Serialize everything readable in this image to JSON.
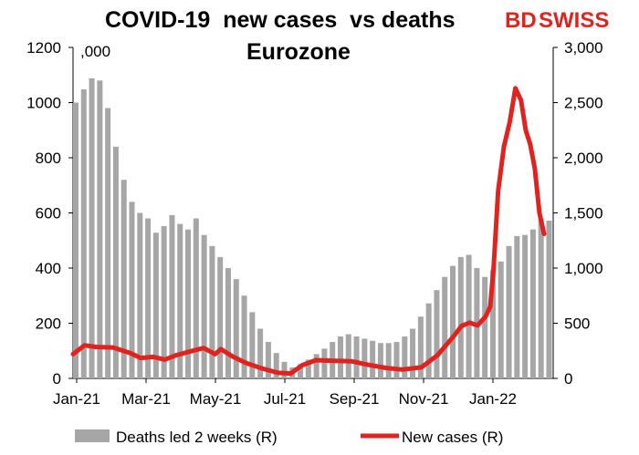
{
  "title_line1": "COVID-19  new cases  vs deaths",
  "title_line2": "Eurozone",
  "brand": {
    "bd": "BD",
    "swiss": "SWISS",
    "color": "#e1231f"
  },
  "unit_label": ",000",
  "colors": {
    "bars": "#a6a6a6",
    "line": "#e1231f"
  },
  "chart_data": {
    "type": "bar+line",
    "x_ticks": [
      "Jan-21",
      "Mar-21",
      "May-21",
      "Jul-21",
      "Sep-21",
      "Nov-21",
      "Jan-22"
    ],
    "left_axis": {
      "ticks": [
        "0",
        "200",
        "400",
        "600",
        "800",
        "1000",
        "1200"
      ],
      "range": [
        0,
        1200
      ]
    },
    "right_axis": {
      "ticks": [
        "0",
        "500",
        "1,000",
        "1,500",
        "2,000",
        "2,500",
        "3,000"
      ],
      "range": [
        0,
        3000
      ]
    },
    "legend": {
      "bars": "Deaths led 2 weeks (R)",
      "line": "New cases (R)",
      "position": "bottom"
    },
    "x_start_date": "2021-01-01",
    "x_end_date": "2022-02-24",
    "series": [
      {
        "name": "Deaths led 2 weeks (R)",
        "type": "bar",
        "axis": "right",
        "points": [
          [
            "2021-01-01",
            2500
          ],
          [
            "2021-01-08",
            2620
          ],
          [
            "2021-01-15",
            2720
          ],
          [
            "2021-01-22",
            2700
          ],
          [
            "2021-01-29",
            2450
          ],
          [
            "2021-02-05",
            2100
          ],
          [
            "2021-02-12",
            1800
          ],
          [
            "2021-02-19",
            1600
          ],
          [
            "2021-02-26",
            1500
          ],
          [
            "2021-03-05",
            1450
          ],
          [
            "2021-03-12",
            1320
          ],
          [
            "2021-03-19",
            1380
          ],
          [
            "2021-03-26",
            1480
          ],
          [
            "2021-04-02",
            1400
          ],
          [
            "2021-04-09",
            1350
          ],
          [
            "2021-04-16",
            1450
          ],
          [
            "2021-04-23",
            1300
          ],
          [
            "2021-04-30",
            1200
          ],
          [
            "2021-05-07",
            1100
          ],
          [
            "2021-05-14",
            1000
          ],
          [
            "2021-05-21",
            900
          ],
          [
            "2021-05-28",
            750
          ],
          [
            "2021-06-04",
            600
          ],
          [
            "2021-06-11",
            450
          ],
          [
            "2021-06-18",
            330
          ],
          [
            "2021-06-25",
            230
          ],
          [
            "2021-07-02",
            150
          ],
          [
            "2021-07-09",
            100
          ],
          [
            "2021-07-16",
            130
          ],
          [
            "2021-07-23",
            170
          ],
          [
            "2021-07-30",
            220
          ],
          [
            "2021-08-06",
            270
          ],
          [
            "2021-08-13",
            330
          ],
          [
            "2021-08-20",
            380
          ],
          [
            "2021-08-27",
            400
          ],
          [
            "2021-09-03",
            380
          ],
          [
            "2021-09-10",
            360
          ],
          [
            "2021-09-17",
            340
          ],
          [
            "2021-09-24",
            320
          ],
          [
            "2021-10-01",
            320
          ],
          [
            "2021-10-08",
            330
          ],
          [
            "2021-10-15",
            380
          ],
          [
            "2021-10-22",
            450
          ],
          [
            "2021-10-29",
            560
          ],
          [
            "2021-11-05",
            680
          ],
          [
            "2021-11-12",
            800
          ],
          [
            "2021-11-19",
            920
          ],
          [
            "2021-11-26",
            1020
          ],
          [
            "2021-12-03",
            1100
          ],
          [
            "2021-12-10",
            1120
          ],
          [
            "2021-12-17",
            1000
          ],
          [
            "2021-12-24",
            920
          ],
          [
            "2021-12-31",
            980
          ],
          [
            "2022-01-07",
            1060
          ],
          [
            "2022-01-14",
            1200
          ],
          [
            "2022-01-21",
            1290
          ],
          [
            "2022-01-28",
            1300
          ],
          [
            "2022-02-04",
            1350
          ],
          [
            "2022-02-11",
            1450
          ],
          [
            "2022-02-18",
            1430
          ]
        ]
      },
      {
        "name": "New cases (R)",
        "type": "line",
        "axis": "right",
        "points": [
          [
            "2021-01-01",
            220
          ],
          [
            "2021-01-11",
            300
          ],
          [
            "2021-01-21",
            285
          ],
          [
            "2021-02-05",
            280
          ],
          [
            "2021-02-20",
            230
          ],
          [
            "2021-03-01",
            185
          ],
          [
            "2021-03-12",
            195
          ],
          [
            "2021-03-22",
            170
          ],
          [
            "2021-04-01",
            210
          ],
          [
            "2021-04-15",
            250
          ],
          [
            "2021-04-25",
            275
          ],
          [
            "2021-05-05",
            220
          ],
          [
            "2021-05-10",
            265
          ],
          [
            "2021-05-20",
            200
          ],
          [
            "2021-06-01",
            140
          ],
          [
            "2021-06-15",
            90
          ],
          [
            "2021-06-29",
            50
          ],
          [
            "2021-07-10",
            45
          ],
          [
            "2021-07-20",
            120
          ],
          [
            "2021-08-01",
            165
          ],
          [
            "2021-08-15",
            160
          ],
          [
            "2021-09-01",
            155
          ],
          [
            "2021-09-15",
            125
          ],
          [
            "2021-10-01",
            95
          ],
          [
            "2021-10-15",
            80
          ],
          [
            "2021-11-01",
            100
          ],
          [
            "2021-11-15",
            210
          ],
          [
            "2021-11-29",
            380
          ],
          [
            "2021-12-06",
            475
          ],
          [
            "2021-12-13",
            505
          ],
          [
            "2021-12-20",
            480
          ],
          [
            "2021-12-27",
            560
          ],
          [
            "2021-12-31",
            650
          ],
          [
            "2022-01-03",
            1000
          ],
          [
            "2022-01-07",
            1700
          ],
          [
            "2022-01-12",
            2100
          ],
          [
            "2022-01-17",
            2320
          ],
          [
            "2022-01-22",
            2630
          ],
          [
            "2022-01-27",
            2520
          ],
          [
            "2022-01-31",
            2250
          ],
          [
            "2022-02-04",
            2120
          ],
          [
            "2022-02-08",
            1900
          ],
          [
            "2022-02-12",
            1500
          ],
          [
            "2022-02-16",
            1310
          ]
        ]
      }
    ]
  }
}
